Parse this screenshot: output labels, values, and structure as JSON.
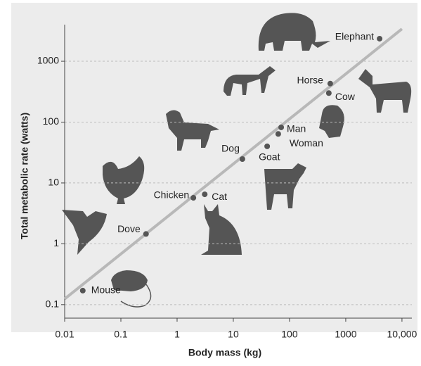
{
  "chart_data": {
    "type": "scatter",
    "x_label": "Body mass (kg)",
    "y_label": "Total metabolic rate (watts)",
    "log_x": true,
    "log_y": true,
    "grid": true,
    "xlim": [
      0.01,
      15000
    ],
    "ylim": [
      0.06,
      4000
    ],
    "xticks": [
      0.01,
      0.1,
      1,
      10,
      100,
      1000,
      {
        "value": 10000,
        "label": "10,000"
      }
    ],
    "yticks": [
      0.1,
      1,
      10,
      100,
      1000
    ],
    "color": "#555555",
    "points": [
      {
        "label": "Mouse",
        "x": 0.021,
        "y": 0.17
      },
      {
        "label": "Dove",
        "x": 0.28,
        "y": 1.45
      },
      {
        "label": "Chicken",
        "x": 1.95,
        "y": 5.7
      },
      {
        "label": "Cat",
        "x": 3.1,
        "y": 6.5
      },
      {
        "label": "Dog",
        "x": 14.5,
        "y": 24.7
      },
      {
        "label": "Goat",
        "x": 40,
        "y": 40
      },
      {
        "label": "Woman",
        "x": 63,
        "y": 64
      },
      {
        "label": "Man",
        "x": 71,
        "y": 82
      },
      {
        "label": "Horse",
        "x": 530,
        "y": 430
      },
      {
        "label": "Cow",
        "x": 500,
        "y": 300
      },
      {
        "label": "Elephant",
        "x": 4000,
        "y": 2350
      }
    ],
    "trend_line": {
      "color": "#b8b8b8",
      "x": [
        0.01,
        10000
      ],
      "y": [
        0.124,
        3400
      ]
    }
  }
}
